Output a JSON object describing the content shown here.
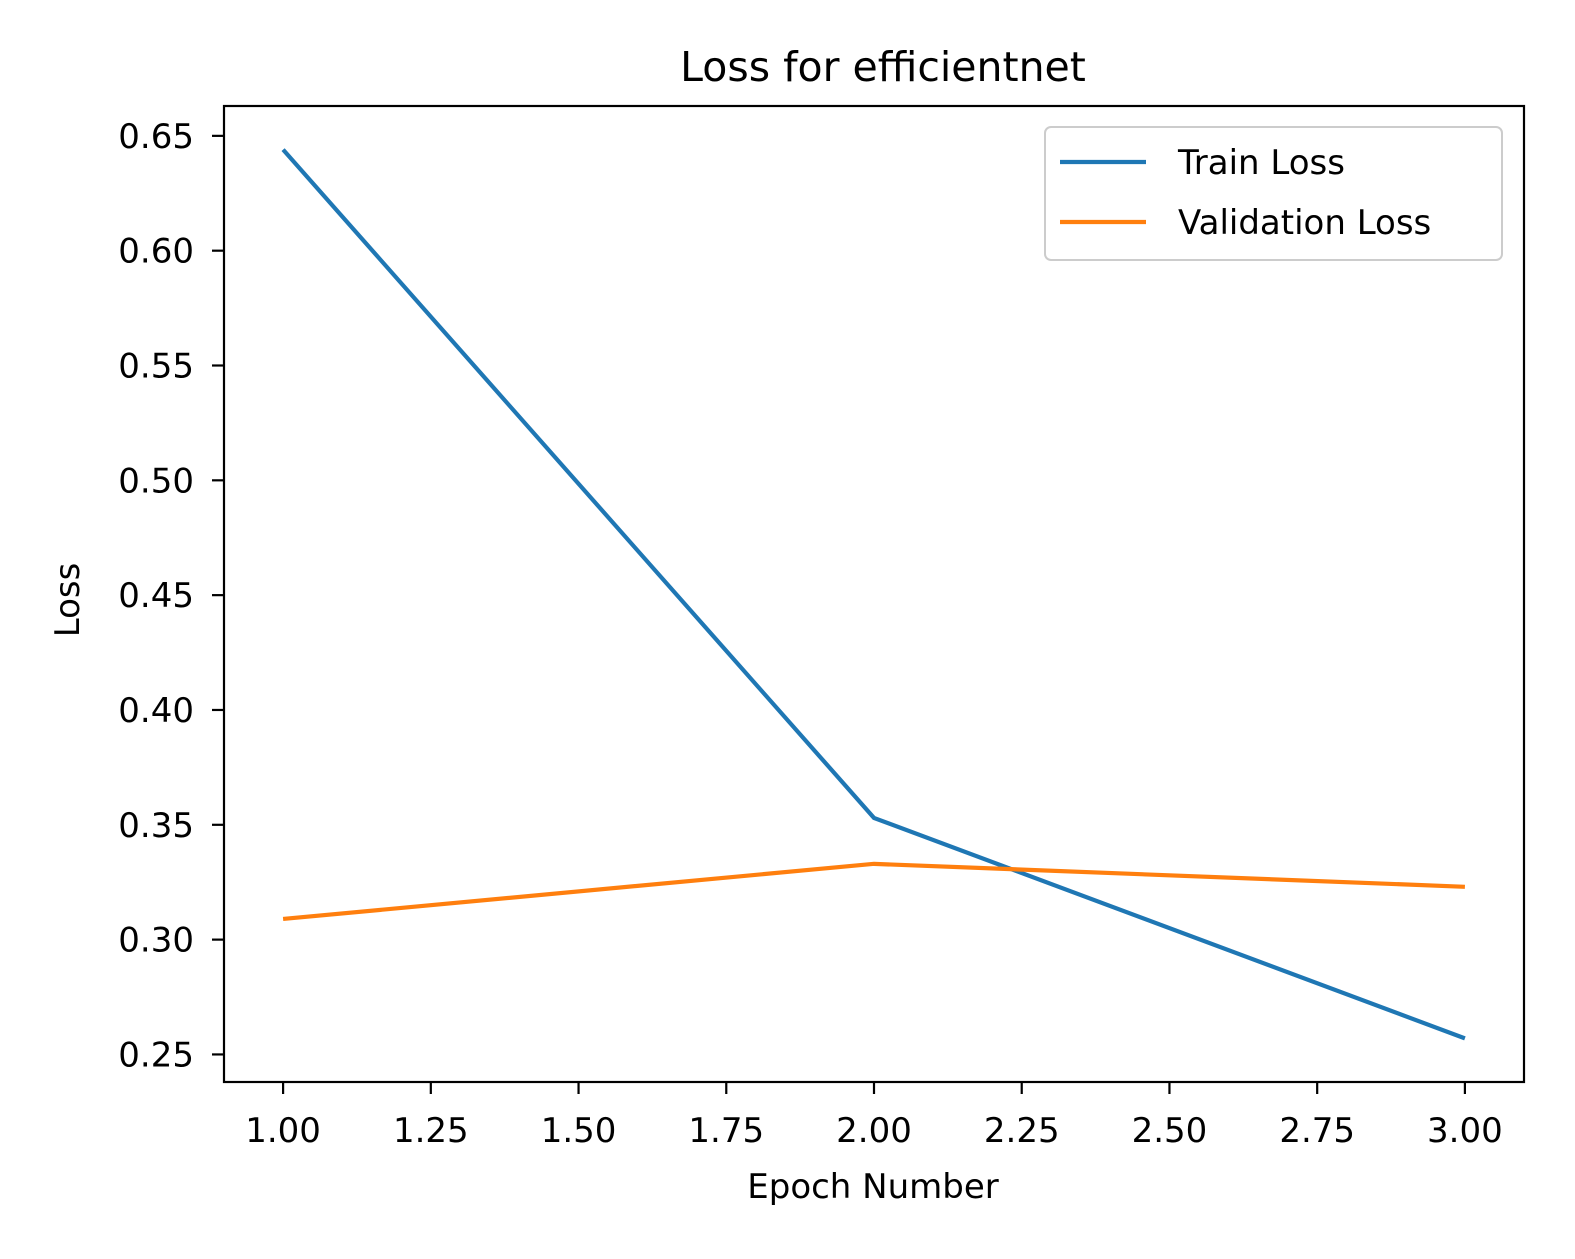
{
  "chart_data": {
    "type": "line",
    "title": "Loss for efficientnet",
    "xlabel": "Epoch Number",
    "ylabel": "Loss",
    "x": [
      1,
      2,
      3
    ],
    "series": [
      {
        "name": "Train Loss",
        "color": "#1f77b4",
        "values": [
          0.644,
          0.353,
          0.257
        ]
      },
      {
        "name": "Validation Loss",
        "color": "#ff7f0e",
        "values": [
          0.309,
          0.333,
          0.323
        ]
      }
    ],
    "xlim": [
      0.9,
      3.1
    ],
    "ylim": [
      0.238,
      0.663
    ],
    "xticks": [
      1.0,
      1.25,
      1.5,
      1.75,
      2.0,
      2.25,
      2.5,
      2.75,
      3.0
    ],
    "xtick_labels": [
      "1.00",
      "1.25",
      "1.50",
      "1.75",
      "2.00",
      "2.25",
      "2.50",
      "2.75",
      "3.00"
    ],
    "yticks": [
      0.25,
      0.3,
      0.35,
      0.4,
      0.45,
      0.5,
      0.55,
      0.6,
      0.65
    ],
    "ytick_labels": [
      "0.25",
      "0.30",
      "0.35",
      "0.40",
      "0.45",
      "0.50",
      "0.55",
      "0.60",
      "0.65"
    ],
    "grid": false,
    "legend_position": "upper right"
  }
}
